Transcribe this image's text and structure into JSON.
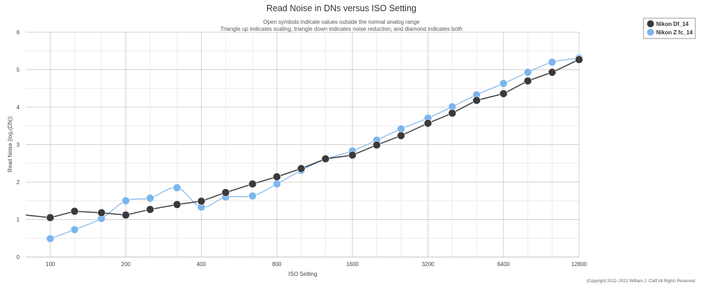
{
  "chart_data": {
    "type": "line",
    "title": "Read Noise in DNs versus ISO Setting",
    "subtitle_lines": [
      "Open symbols indicate values outside the normal analog range",
      "Triangle up indicates scaling, triangle down indicates noise reduction, and diamond indicates both"
    ],
    "xlabel": "ISO Setting",
    "ylabel": "Read Noise (log₂(DN))",
    "x_scale": "log2",
    "xlim": [
      80,
      12800
    ],
    "ylim": [
      0,
      6
    ],
    "x_ticks": [
      100,
      200,
      400,
      800,
      1600,
      3200,
      6400,
      12800
    ],
    "x_tick_labels": [
      "100",
      "200",
      "400",
      "800",
      "1600",
      "3200",
      "6400",
      "12800"
    ],
    "y_ticks": [
      0,
      1,
      2,
      3,
      4,
      5,
      6
    ],
    "y_tick_labels": [
      "0",
      "1",
      "2",
      "3",
      "4",
      "5",
      "6"
    ],
    "grid": true,
    "legend_position": "top-right",
    "series": [
      {
        "name": "Nikon Df_14",
        "color": "#3a3a3c",
        "start_value": {
          "x": 80,
          "y": 1.12
        },
        "points": [
          {
            "x": 100,
            "y": 1.05
          },
          {
            "x": 125,
            "y": 1.22
          },
          {
            "x": 160,
            "y": 1.18
          },
          {
            "x": 200,
            "y": 1.12
          },
          {
            "x": 250,
            "y": 1.27
          },
          {
            "x": 320,
            "y": 1.4
          },
          {
            "x": 400,
            "y": 1.49
          },
          {
            "x": 500,
            "y": 1.72
          },
          {
            "x": 640,
            "y": 1.95
          },
          {
            "x": 800,
            "y": 2.14
          },
          {
            "x": 1000,
            "y": 2.36
          },
          {
            "x": 1250,
            "y": 2.62
          },
          {
            "x": 1600,
            "y": 2.72
          },
          {
            "x": 2000,
            "y": 2.99
          },
          {
            "x": 2500,
            "y": 3.24
          },
          {
            "x": 3200,
            "y": 3.57
          },
          {
            "x": 4000,
            "y": 3.84
          },
          {
            "x": 5000,
            "y": 4.18
          },
          {
            "x": 6400,
            "y": 4.36
          },
          {
            "x": 8000,
            "y": 4.7
          },
          {
            "x": 10000,
            "y": 4.93
          },
          {
            "x": 12800,
            "y": 5.27
          }
        ]
      },
      {
        "name": "Nikon Z fc_14",
        "color": "#7cb5ec",
        "points": [
          {
            "x": 100,
            "y": 0.49
          },
          {
            "x": 125,
            "y": 0.73
          },
          {
            "x": 160,
            "y": 1.03
          },
          {
            "x": 200,
            "y": 1.5
          },
          {
            "x": 250,
            "y": 1.57
          },
          {
            "x": 320,
            "y": 1.85
          },
          {
            "x": 400,
            "y": 1.33
          },
          {
            "x": 500,
            "y": 1.6
          },
          {
            "x": 640,
            "y": 1.63
          },
          {
            "x": 800,
            "y": 1.95
          },
          {
            "x": 1000,
            "y": 2.31
          },
          {
            "x": 1250,
            "y": 2.61
          },
          {
            "x": 1600,
            "y": 2.83
          },
          {
            "x": 2000,
            "y": 3.12
          },
          {
            "x": 2500,
            "y": 3.42
          },
          {
            "x": 3200,
            "y": 3.71
          },
          {
            "x": 4000,
            "y": 4.01
          },
          {
            "x": 5000,
            "y": 4.33
          },
          {
            "x": 6400,
            "y": 4.63
          },
          {
            "x": 8000,
            "y": 4.93
          },
          {
            "x": 10000,
            "y": 5.2
          },
          {
            "x": 12800,
            "y": 5.31
          }
        ]
      }
    ]
  },
  "copyright": "(Copyright 2012–2022 William J. Claff All Rights Reserved."
}
